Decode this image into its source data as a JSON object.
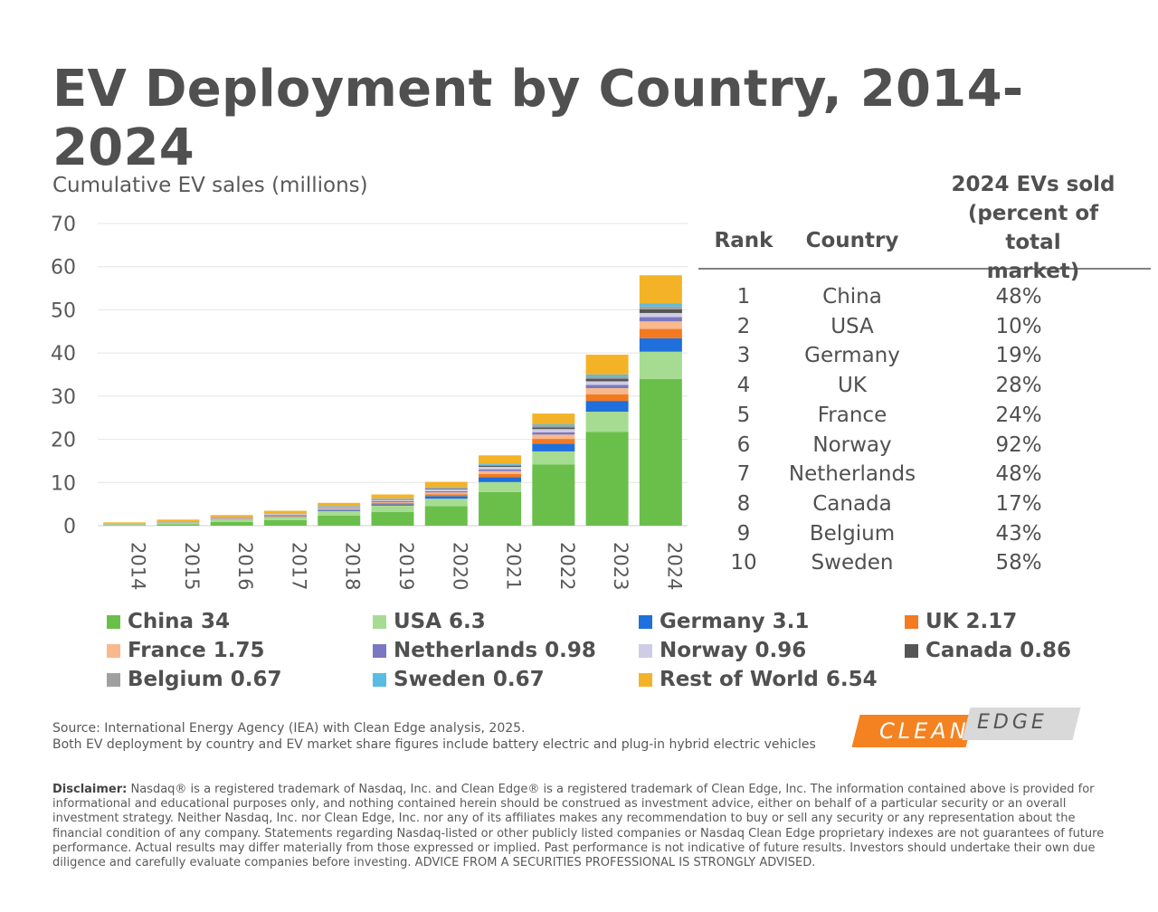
{
  "chart_data": {
    "type": "bar",
    "stacked": true,
    "title": "EV Deployment by Country, 2014-2024",
    "ylabel": "Cumulative EV sales (millions)",
    "xlabel": "",
    "ylim": [
      0,
      70
    ],
    "yticks": [
      0,
      10,
      20,
      30,
      40,
      50,
      60,
      70
    ],
    "grid": true,
    "legend": "bottom",
    "categories": [
      "2014",
      "2015",
      "2016",
      "2017",
      "2018",
      "2019",
      "2020",
      "2021",
      "2022",
      "2023",
      "2024"
    ],
    "series": [
      {
        "name": "China",
        "legend_label": "China 34",
        "color": "#6abf4b",
        "values": [
          0.1,
          0.3,
          0.9,
          1.3,
          2.3,
          3.2,
          4.5,
          7.8,
          14.2,
          21.7,
          34.0
        ]
      },
      {
        "name": "USA",
        "legend_label": "USA 6.3",
        "color": "#a6dc92",
        "values": [
          0.25,
          0.4,
          0.55,
          0.75,
          1.1,
          1.45,
          1.75,
          2.3,
          3.0,
          4.7,
          6.3
        ]
      },
      {
        "name": "Germany",
        "legend_label": "Germany 3.1",
        "color": "#1f6fdd",
        "values": [
          0.02,
          0.05,
          0.07,
          0.12,
          0.2,
          0.3,
          0.6,
          1.1,
          1.8,
          2.5,
          3.1
        ]
      },
      {
        "name": "UK",
        "legend_label": "UK 2.17",
        "color": "#f37a20",
        "values": [
          0.02,
          0.05,
          0.09,
          0.13,
          0.2,
          0.28,
          0.45,
          0.75,
          1.1,
          1.55,
          2.17
        ]
      },
      {
        "name": "France",
        "legend_label": "France 1.75",
        "color": "#f9b88d",
        "values": [
          0.02,
          0.04,
          0.07,
          0.11,
          0.16,
          0.22,
          0.4,
          0.7,
          1.0,
          1.4,
          1.75
        ]
      },
      {
        "name": "Netherlands",
        "legend_label": "Netherlands 0.98",
        "color": "#7b78c2",
        "values": [
          0.04,
          0.08,
          0.1,
          0.12,
          0.15,
          0.22,
          0.3,
          0.4,
          0.55,
          0.75,
          0.98
        ]
      },
      {
        "name": "Norway",
        "legend_label": "Norway 0.96",
        "color": "#cfcde6",
        "values": [
          0.04,
          0.08,
          0.13,
          0.18,
          0.25,
          0.33,
          0.44,
          0.58,
          0.72,
          0.84,
          0.96
        ]
      },
      {
        "name": "Canada",
        "legend_label": "Canada 0.86",
        "color": "#555555",
        "values": [
          0.01,
          0.02,
          0.03,
          0.05,
          0.09,
          0.14,
          0.2,
          0.28,
          0.4,
          0.6,
          0.86
        ]
      },
      {
        "name": "Belgium",
        "legend_label": "Belgium 0.67",
        "color": "#a0a0a0",
        "values": [
          0.01,
          0.02,
          0.03,
          0.04,
          0.05,
          0.07,
          0.11,
          0.18,
          0.3,
          0.45,
          0.67
        ]
      },
      {
        "name": "Sweden",
        "legend_label": "Sweden 0.67",
        "color": "#58bde0",
        "values": [
          0.01,
          0.02,
          0.03,
          0.05,
          0.08,
          0.12,
          0.2,
          0.3,
          0.4,
          0.52,
          0.67
        ]
      },
      {
        "name": "Rest of World",
        "legend_label": "Rest of World 6.54",
        "color": "#f4b326",
        "values": [
          0.25,
          0.35,
          0.45,
          0.6,
          0.7,
          0.9,
          1.2,
          1.9,
          2.5,
          4.6,
          6.54
        ]
      }
    ]
  },
  "table": {
    "headers": {
      "rank": "Rank",
      "country": "Country",
      "pct_line1": "2024 EVs sold",
      "pct_line2": "(percent of total",
      "pct_line3": "market)"
    },
    "rows": [
      {
        "rank": "1",
        "country": "China",
        "pct": "48%"
      },
      {
        "rank": "2",
        "country": "USA",
        "pct": "10%"
      },
      {
        "rank": "3",
        "country": "Germany",
        "pct": "19%"
      },
      {
        "rank": "4",
        "country": "UK",
        "pct": "28%"
      },
      {
        "rank": "5",
        "country": "France",
        "pct": "24%"
      },
      {
        "rank": "6",
        "country": "Norway",
        "pct": "92%"
      },
      {
        "rank": "7",
        "country": "Netherlands",
        "pct": "48%"
      },
      {
        "rank": "8",
        "country": "Canada",
        "pct": "17%"
      },
      {
        "rank": "9",
        "country": "Belgium",
        "pct": "43%"
      },
      {
        "rank": "10",
        "country": "Sweden",
        "pct": "58%"
      }
    ]
  },
  "source": {
    "line1": "Source: International Energy Agency (IEA) with Clean Edge analysis, 2025.",
    "line2": "Both EV deployment by country and EV market share figures include battery electric and plug-in hybrid electric vehicles"
  },
  "logo": {
    "left": "CLEAN",
    "right": "EDGE",
    "left_color": "#f58220",
    "right_color": "#d9d9d9"
  },
  "disclaimer": {
    "label": "Disclaimer:",
    "text": " Nasdaq® is a registered trademark of Nasdaq, Inc. and Clean Edge® is a registered trademark of Clean Edge, Inc. The information contained above is provided for informational and educational purposes only, and nothing contained herein should be construed as investment advice, either on behalf of a particular security or an overall investment strategy. Neither Nasdaq, Inc. nor Clean Edge, Inc. nor any of its affiliates makes any recommendation to buy or sell any security or any representation about the financial condition of any company. Statements regarding Nasdaq-listed or other publicly listed companies or Nasdaq Clean Edge proprietary indexes are not guarantees of future performance. Actual results may differ materially from those expressed or implied. Past performance is not indicative of future results. Investors should undertake their own due diligence and carefully evaluate companies before investing.  ADVICE FROM A SECURITIES PROFESSIONAL IS STRONGLY ADVISED."
  }
}
